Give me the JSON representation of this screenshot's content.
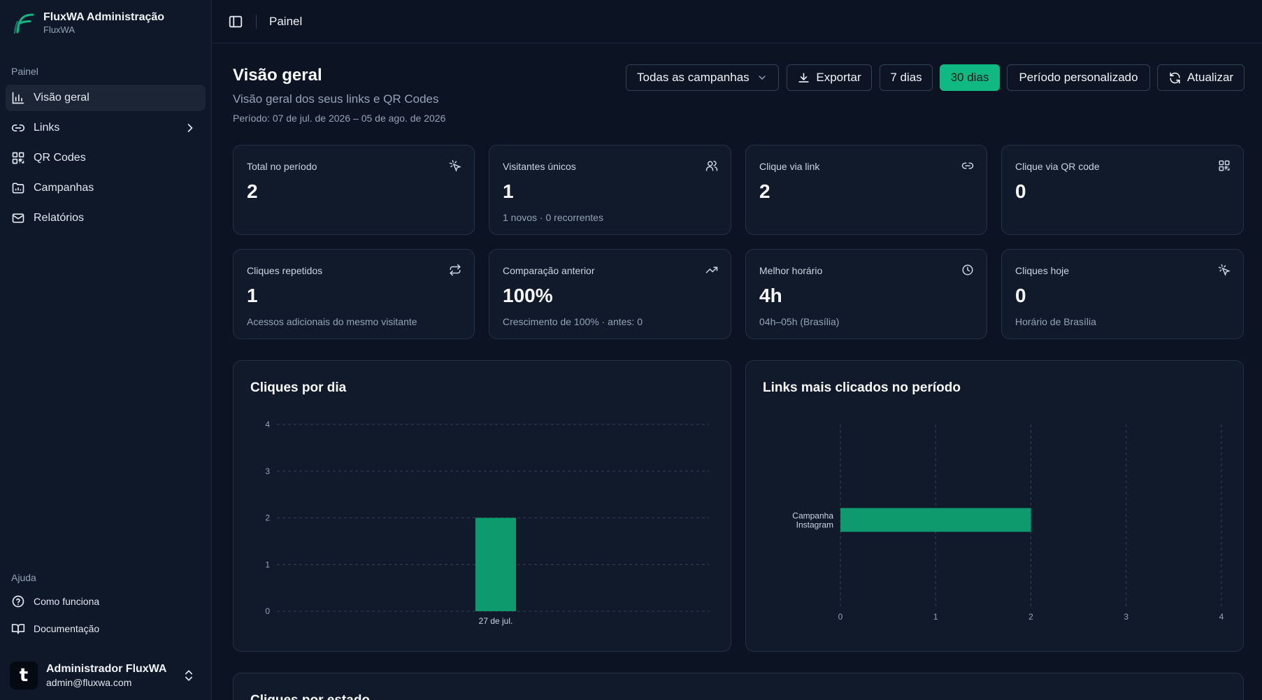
{
  "app": {
    "title": "FluxWA Administração",
    "subtitle": "FluxWA"
  },
  "sidebar": {
    "section_label": "Painel",
    "items": [
      {
        "label": "Visão geral",
        "icon": "bar-chart-icon",
        "active": true
      },
      {
        "label": "Links",
        "icon": "link-icon",
        "has_submenu": true
      },
      {
        "label": "QR Codes",
        "icon": "qr-code-icon"
      },
      {
        "label": "Campanhas",
        "icon": "folder-chart-icon"
      },
      {
        "label": "Relatórios",
        "icon": "mail-icon"
      }
    ],
    "help_label": "Ajuda",
    "help_items": [
      {
        "label": "Como funciona",
        "icon": "help-circle-icon"
      },
      {
        "label": "Documentação",
        "icon": "book-open-icon"
      }
    ],
    "user": {
      "name": "Administrador FluxWA",
      "email": "admin@fluxwa.com",
      "avatar_letter": "t"
    }
  },
  "topbar": {
    "breadcrumb": "Painel"
  },
  "page": {
    "title": "Visão geral",
    "subtitle": "Visão geral dos seus links e QR Codes",
    "period": "Período: 07 de jul. de 2026 – 05 de ago. de 2026"
  },
  "toolbar": {
    "campaign_select": "Todas as campanhas",
    "export": "Exportar",
    "days7": "7 dias",
    "days30": "30 dias",
    "custom": "Período personalizado",
    "refresh": "Atualizar"
  },
  "stats": [
    {
      "label": "Total no período",
      "value": "2",
      "note": "",
      "icon": "click-icon"
    },
    {
      "label": "Visitantes únicos",
      "value": "1",
      "note": "1 novos · 0 recorrentes",
      "icon": "users-icon"
    },
    {
      "label": "Clique via link",
      "value": "2",
      "note": "",
      "icon": "link-icon"
    },
    {
      "label": "Clique via QR code",
      "value": "0",
      "note": "",
      "icon": "qr-code-icon"
    },
    {
      "label": "Cliques repetidos",
      "value": "1",
      "note": "Acessos adicionais do mesmo visitante",
      "icon": "repeat-icon"
    },
    {
      "label": "Comparação anterior",
      "value": "100%",
      "note": "Crescimento de 100% · antes: 0",
      "icon": "trending-up-icon"
    },
    {
      "label": "Melhor horário",
      "value": "4h",
      "note": "04h–05h (Brasília)",
      "icon": "clock-icon"
    },
    {
      "label": "Cliques hoje",
      "value": "0",
      "note": "Horário de Brasília",
      "icon": "click-icon"
    }
  ],
  "colors": {
    "accent": "#10b981",
    "bar": "#0f9a6e",
    "background": "#0c1322"
  },
  "next_section_title": "Cliques por estado",
  "chart_data": [
    {
      "type": "bar",
      "title": "Cliques por dia",
      "categories": [
        "27 de jul."
      ],
      "values": [
        2
      ],
      "ylim": [
        0,
        4
      ],
      "yticks": [
        "0",
        "1",
        "2",
        "3",
        "4"
      ],
      "grid": true
    },
    {
      "type": "bar",
      "orientation": "horizontal",
      "title": "Links mais clicados no período",
      "categories": [
        "Campanha Instagram"
      ],
      "values": [
        2
      ],
      "xlim": [
        0,
        4
      ],
      "xticks": [
        "0",
        "1",
        "2",
        "3",
        "4"
      ],
      "grid": true
    }
  ]
}
